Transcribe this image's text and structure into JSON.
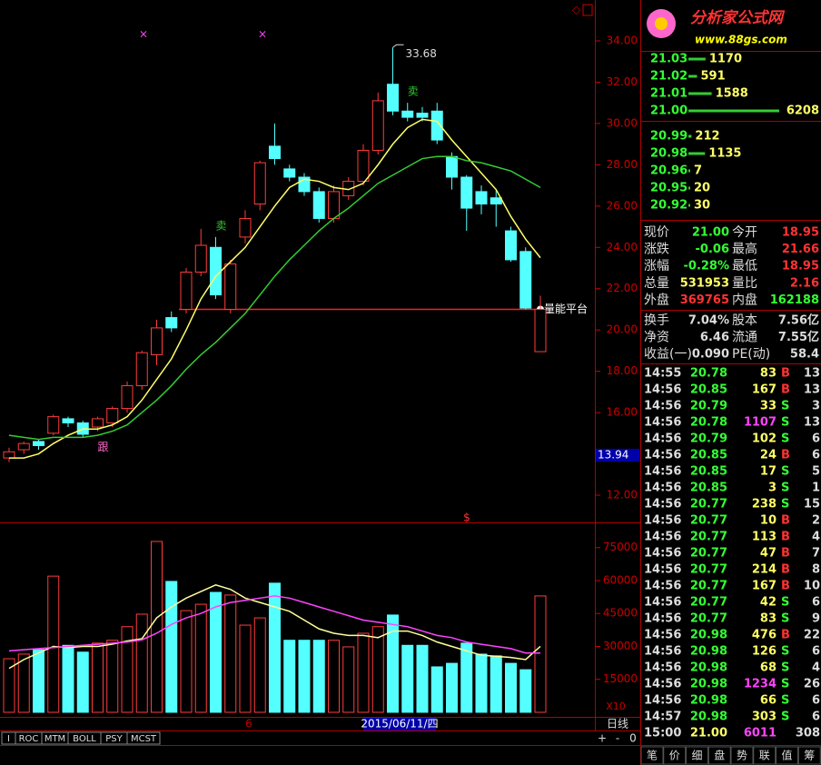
{
  "chart_data": {
    "type": "candlestick",
    "open": [
      13.8,
      14.2,
      14.6,
      15.0,
      15.7,
      15.5,
      15.3,
      15.5,
      16.2,
      17.3,
      18.8,
      20.6,
      21.0,
      22.8,
      24.0,
      21.0,
      24.5,
      26.1,
      28.9,
      27.8,
      27.4,
      26.7,
      25.4,
      26.5,
      27.2,
      28.7,
      31.9,
      30.6,
      30.5,
      30.6,
      28.4,
      27.4,
      26.7,
      26.4,
      24.8,
      23.8,
      18.95
    ],
    "high": [
      14.3,
      14.6,
      14.7,
      15.9,
      15.8,
      15.6,
      15.8,
      16.3,
      17.5,
      19.0,
      20.5,
      20.9,
      23.0,
      24.9,
      24.5,
      23.4,
      25.8,
      28.2,
      30.0,
      28.0,
      27.6,
      26.9,
      27.0,
      27.4,
      29.0,
      31.5,
      33.68,
      31.0,
      30.8,
      31.0,
      28.6,
      27.5,
      27.0,
      26.8,
      25.0,
      24.0,
      21.66
    ],
    "low": [
      13.6,
      14.0,
      14.2,
      14.9,
      15.3,
      14.8,
      15.1,
      15.3,
      16.0,
      17.1,
      18.3,
      19.9,
      20.8,
      22.6,
      21.5,
      20.8,
      24.2,
      25.8,
      28.0,
      27.2,
      26.5,
      25.2,
      25.2,
      26.3,
      27.0,
      28.5,
      30.4,
      30.1,
      30.1,
      29.0,
      26.8,
      24.8,
      25.6,
      25.0,
      23.3,
      21.0,
      18.95
    ],
    "close": [
      14.1,
      14.5,
      14.4,
      15.8,
      15.5,
      14.95,
      15.7,
      16.2,
      17.3,
      18.9,
      20.1,
      20.1,
      22.8,
      24.1,
      21.7,
      23.2,
      25.4,
      28.1,
      28.3,
      27.4,
      26.7,
      25.4,
      26.7,
      27.2,
      28.7,
      31.1,
      30.6,
      30.3,
      30.3,
      29.2,
      27.4,
      25.9,
      26.1,
      26.1,
      23.4,
      21.06,
      21.0
    ],
    "ma": [
      {
        "color": "#ffff66",
        "values": [
          13.8,
          13.8,
          14.0,
          14.5,
          14.9,
          15.2,
          15.2,
          15.4,
          15.8,
          16.6,
          17.6,
          18.6,
          20.0,
          21.5,
          22.6,
          23.3,
          24.0,
          25.0,
          26.0,
          26.9,
          27.3,
          27.2,
          26.9,
          26.8,
          27.1,
          28.0,
          29.0,
          29.8,
          30.2,
          30.1,
          29.2,
          28.4,
          27.6,
          26.8,
          25.5,
          24.4,
          23.5
        ]
      },
      {
        "color": "#33cc33",
        "values": [
          14.9,
          14.8,
          14.7,
          14.8,
          14.8,
          14.8,
          14.9,
          15.1,
          15.4,
          16.0,
          16.6,
          17.3,
          18.1,
          18.8,
          19.4,
          20.1,
          20.8,
          21.7,
          22.6,
          23.4,
          24.1,
          24.8,
          25.4,
          25.9,
          26.5,
          27.1,
          27.5,
          27.9,
          28.3,
          28.4,
          28.4,
          28.2,
          28.1,
          27.9,
          27.7,
          27.3,
          26.9
        ]
      }
    ],
    "ylim": [
      10.68,
      35.98
    ],
    "yticks": [
      {
        "value": 12,
        "label": "12.00"
      },
      {
        "value": 14,
        "label": "14.00"
      },
      {
        "value": 16,
        "label": "16.00"
      },
      {
        "value": 18,
        "label": "18.00"
      },
      {
        "value": 20,
        "label": "20.00"
      },
      {
        "value": 22,
        "label": "22.00"
      },
      {
        "value": 24,
        "label": "24.00"
      },
      {
        "value": 26,
        "label": "26.00"
      },
      {
        "value": 28,
        "label": "28.00"
      },
      {
        "value": 30,
        "label": "30.00"
      },
      {
        "value": 32,
        "label": "32.00"
      },
      {
        "value": 34,
        "label": "34.00"
      }
    ],
    "sell_labels": [
      "卖",
      "卖"
    ],
    "follow_label": "跟",
    "platform": {
      "label": "量能平台",
      "value": 21.0
    },
    "cursor_price": 13.94,
    "marker": "$",
    "volume": {
      "values": [
        24400,
        26500,
        28500,
        62000,
        30500,
        27400,
        31500,
        32800,
        39000,
        44700,
        77800,
        59600,
        46300,
        49200,
        54600,
        53400,
        39700,
        43000,
        58800,
        32800,
        32800,
        32800,
        32800,
        29800,
        36000,
        39000,
        44300,
        30500,
        30500,
        20700,
        22300,
        31500,
        26500,
        25700,
        22300,
        19400,
        53000
      ],
      "ma": [
        {
          "color": "#ffff99",
          "values": [
            20000,
            24000,
            27000,
            30000,
            29500,
            30000,
            30000,
            31000,
            32500,
            33500,
            43000,
            48000,
            52000,
            55000,
            58000,
            56000,
            52000,
            50000,
            48000,
            46000,
            42000,
            38000,
            36000,
            35000,
            35000,
            34000,
            37000,
            37000,
            35000,
            32000,
            30000,
            28000,
            26000,
            25500,
            25000,
            24000,
            30000
          ]
        },
        {
          "color": "#ff44ff",
          "values": [
            28000,
            28500,
            29000,
            29500,
            30000,
            30500,
            31000,
            31500,
            32000,
            33000,
            36000,
            40000,
            43000,
            45000,
            48000,
            50000,
            51000,
            52000,
            53000,
            52000,
            50000,
            48000,
            46000,
            44000,
            42000,
            41000,
            40000,
            39000,
            37000,
            35000,
            34000,
            32000,
            31000,
            30000,
            29000,
            27000,
            27000
          ]
        }
      ],
      "ylim": [
        0,
        84400
      ],
      "yticks": [
        15000,
        30000,
        45000,
        60000,
        75000
      ],
      "scale_label": "X10"
    },
    "date_labels": [
      "6",
      "2015/06/11/四"
    ],
    "period": "日线",
    "indicator_tabs": [
      "I",
      "ROC",
      "MTM",
      "BOLL",
      "PSY",
      "MCST"
    ],
    "nav_buttons": [
      "+",
      "-",
      "0"
    ]
  },
  "logo": {
    "title": "分析家公式网",
    "url": "www.88gs.com"
  },
  "asks": [
    {
      "price": "21.03",
      "volume": 1170
    },
    {
      "price": "21.02",
      "volume": 591
    },
    {
      "price": "21.01",
      "volume": 1588
    },
    {
      "price": "21.00",
      "volume": 6208
    }
  ],
  "bids": [
    {
      "price": "20.99",
      "volume": 212
    },
    {
      "price": "20.98",
      "volume": 1135
    },
    {
      "price": "20.96",
      "volume": 7
    },
    {
      "price": "20.95",
      "volume": 20
    },
    {
      "price": "20.92",
      "volume": 30
    }
  ],
  "quote": [
    {
      "label": "现价",
      "value": "21.00",
      "label2": "今开",
      "value2": "18.95"
    },
    {
      "label": "涨跌",
      "value": "-0.06",
      "label2": "最高",
      "value2": "21.66"
    },
    {
      "label": "涨幅",
      "value": "-0.28%",
      "label2": "最低",
      "value2": "18.95"
    },
    {
      "label": "总量",
      "value": "531953",
      "label2": "量比",
      "value2": "2.16"
    },
    {
      "label": "外盘",
      "value": "369765",
      "label2": "内盘",
      "value2": "162188"
    },
    {
      "label": "换手",
      "value": "7.04%",
      "label2": "股本",
      "value2": "7.56亿"
    },
    {
      "label": "净资",
      "value": "6.46",
      "label2": "流通",
      "value2": "7.55亿"
    },
    {
      "label": "收益(一)",
      "value": "0.090",
      "label2": "PE(动)",
      "value2": "58.4"
    }
  ],
  "trades": [
    {
      "time": "14:55",
      "price": "20.78",
      "volume": "83",
      "side": "B",
      "count": "13"
    },
    {
      "time": "14:56",
      "price": "20.85",
      "volume": "167",
      "side": "B",
      "count": "13"
    },
    {
      "time": "14:56",
      "price": "20.79",
      "volume": "33",
      "side": "S",
      "count": "3"
    },
    {
      "time": "14:56",
      "price": "20.78",
      "volume": "1107",
      "side": "S",
      "count": "13"
    },
    {
      "time": "14:56",
      "price": "20.79",
      "volume": "102",
      "side": "S",
      "count": "6"
    },
    {
      "time": "14:56",
      "price": "20.85",
      "volume": "24",
      "side": "B",
      "count": "6"
    },
    {
      "time": "14:56",
      "price": "20.85",
      "volume": "17",
      "side": "S",
      "count": "5"
    },
    {
      "time": "14:56",
      "price": "20.85",
      "volume": "3",
      "side": "S",
      "count": "1"
    },
    {
      "time": "14:56",
      "price": "20.77",
      "volume": "238",
      "side": "S",
      "count": "15"
    },
    {
      "time": "14:56",
      "price": "20.77",
      "volume": "10",
      "side": "B",
      "count": "2"
    },
    {
      "time": "14:56",
      "price": "20.77",
      "volume": "113",
      "side": "B",
      "count": "4"
    },
    {
      "time": "14:56",
      "price": "20.77",
      "volume": "47",
      "side": "B",
      "count": "7"
    },
    {
      "time": "14:56",
      "price": "20.77",
      "volume": "214",
      "side": "B",
      "count": "8"
    },
    {
      "time": "14:56",
      "price": "20.77",
      "volume": "167",
      "side": "B",
      "count": "10"
    },
    {
      "time": "14:56",
      "price": "20.77",
      "volume": "42",
      "side": "S",
      "count": "6"
    },
    {
      "time": "14:56",
      "price": "20.77",
      "volume": "83",
      "side": "S",
      "count": "9"
    },
    {
      "time": "14:56",
      "price": "20.98",
      "volume": "476",
      "side": "B",
      "count": "22"
    },
    {
      "time": "14:56",
      "price": "20.98",
      "volume": "126",
      "side": "S",
      "count": "6"
    },
    {
      "time": "14:56",
      "price": "20.98",
      "volume": "68",
      "side": "S",
      "count": "4"
    },
    {
      "time": "14:56",
      "price": "20.98",
      "volume": "1234",
      "side": "S",
      "count": "26"
    },
    {
      "time": "14:56",
      "price": "20.98",
      "volume": "66",
      "side": "S",
      "count": "6"
    },
    {
      "time": "14:57",
      "price": "20.98",
      "volume": "303",
      "side": "S",
      "count": "6"
    },
    {
      "time": "15:00",
      "price": "21.00",
      "volume": "6011",
      "count": "308"
    }
  ],
  "panel_tabs": [
    "笔",
    "价",
    "细",
    "盘",
    "势",
    "联",
    "值",
    "筹"
  ]
}
